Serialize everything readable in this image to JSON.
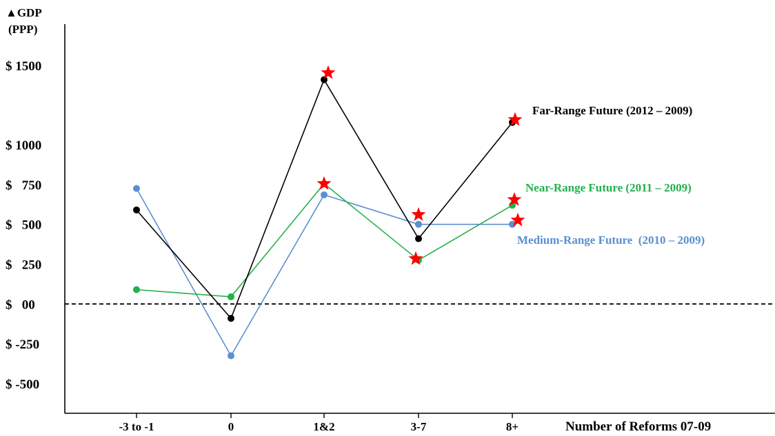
{
  "chart_data": {
    "type": "line",
    "ylabel_line1": "▲GDP",
    "ylabel_line2": "(PPP)",
    "xlabel": "Number of Reforms 07-09",
    "categories": [
      "-3 to -1",
      "0",
      "1&2",
      "3-7",
      "8+"
    ],
    "y_ticks": [
      {
        "value": 1500,
        "label": "$ 1500"
      },
      {
        "value": 1000,
        "label": "$ 1000"
      },
      {
        "value": 750,
        "label": "$   750"
      },
      {
        "value": 500,
        "label": "$   500"
      },
      {
        "value": 250,
        "label": "$   250"
      },
      {
        "value": 0,
        "label": "$   00"
      },
      {
        "value": -250,
        "label": "$ -250"
      },
      {
        "value": -500,
        "label": "$ -500"
      }
    ],
    "y_scale_note": "non-uniform spacing between 1000 and 1500",
    "zero_line": "dashed",
    "grid": false,
    "series": [
      {
        "name": "Far-Range Future (2012 – 2009)",
        "color": "#000000",
        "values": [
          590,
          -90,
          1410,
          410,
          1140
        ],
        "significant": [
          false,
          false,
          true,
          false,
          true
        ]
      },
      {
        "name": "Near-Range Future (2011 – 2009)",
        "color": "#22b14c",
        "values": [
          90,
          45,
          755,
          275,
          620
        ],
        "significant": [
          false,
          false,
          true,
          true,
          true
        ]
      },
      {
        "name": "Medium-Range Future  (2010 – 2009)",
        "color": "#5b8fd1",
        "values": [
          725,
          -325,
          685,
          500,
          500
        ],
        "significant": [
          false,
          false,
          false,
          true,
          true
        ]
      }
    ],
    "marker_colors": {
      "significance_star": "#ff0000"
    }
  }
}
